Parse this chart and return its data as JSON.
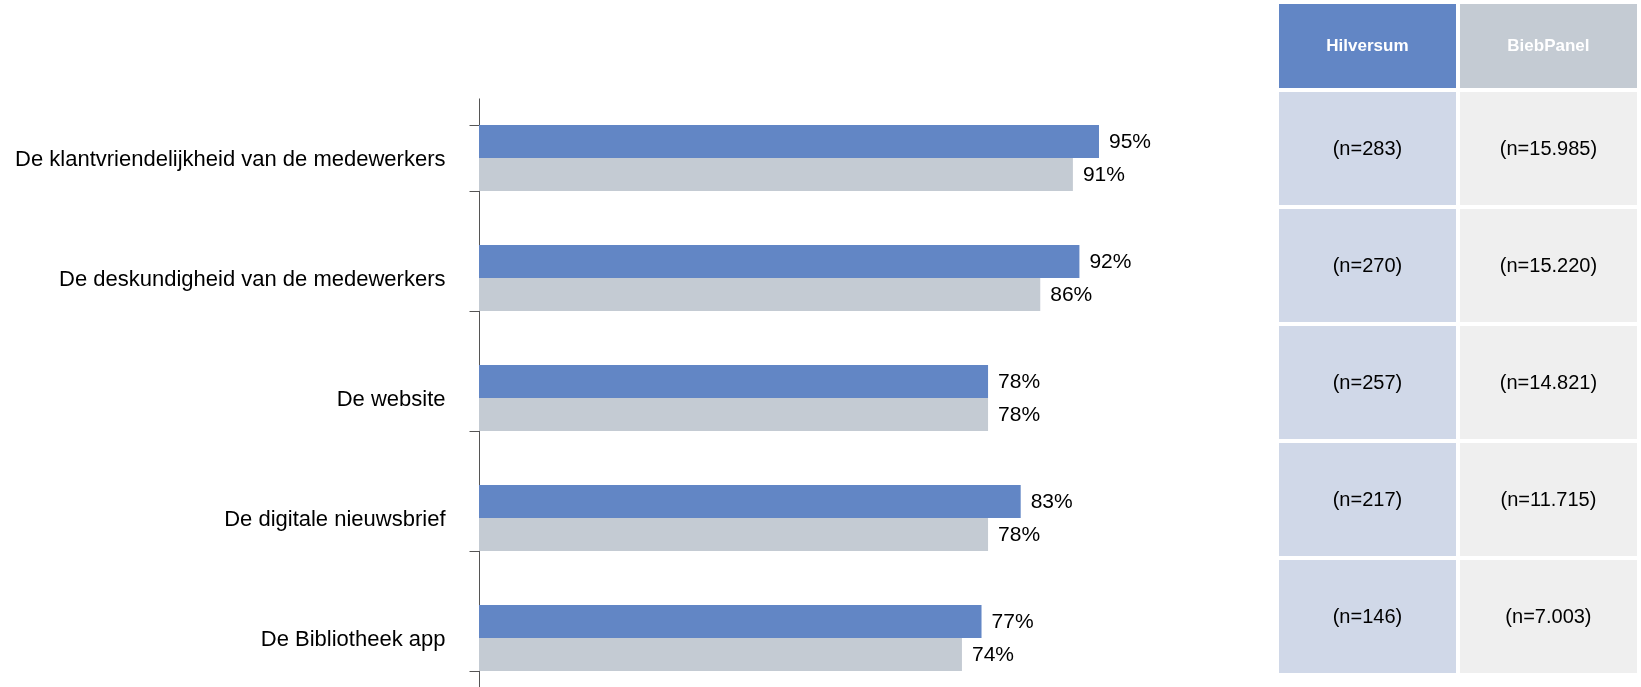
{
  "chart_data": {
    "type": "bar",
    "orientation": "horizontal",
    "categories": [
      "De klantvriendelijkheid van de medewerkers",
      "De deskundigheid van de medewerkers",
      "De website",
      "De digitale nieuwsbrief",
      "De Bibliotheek app"
    ],
    "series": [
      {
        "name": "Hilversum",
        "color": "#6286c5",
        "values": [
          95,
          92,
          78,
          83,
          77
        ],
        "value_labels": [
          "95%",
          "92%",
          "78%",
          "83%",
          "77%"
        ]
      },
      {
        "name": "BiebPanel",
        "color": "#c4cbd3",
        "values": [
          91,
          86,
          78,
          78,
          74
        ],
        "value_labels": [
          "91%",
          "86%",
          "78%",
          "78%",
          "74%"
        ]
      }
    ],
    "annotations": [
      "(n=283)",
      "(n=270)",
      "(n=257)",
      "(n=217)",
      "(n=146)",
      "(n=15.985)",
      "(n=15.220)",
      "(n=14.821)",
      "(n=11.715)",
      "(n=7.003)"
    ],
    "grid": false
  }
}
